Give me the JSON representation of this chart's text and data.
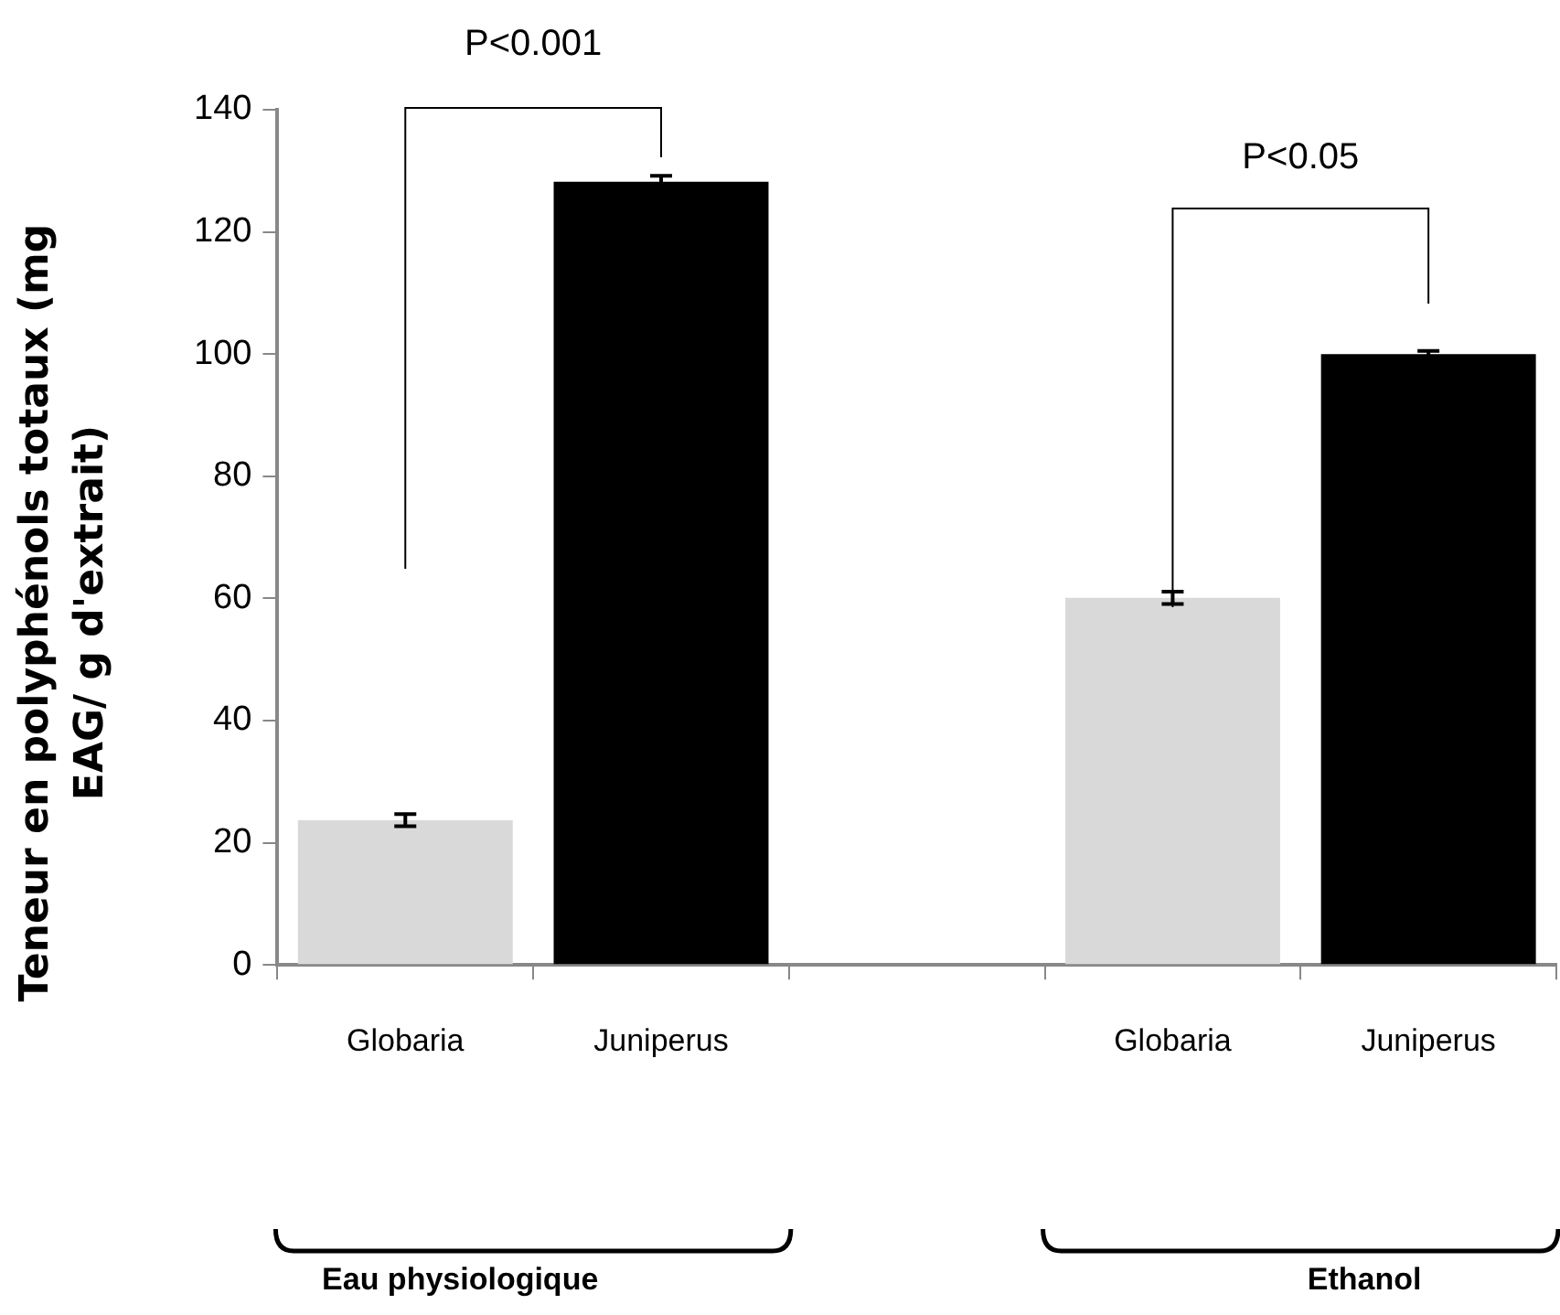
{
  "chart_data": {
    "type": "bar",
    "ylabel": "Teneur en polyphénols totaux (mg EAG/ g d'extrait)",
    "categories": [
      "Globaria",
      "Juniperus",
      null,
      "Globaria",
      "Juniperus"
    ],
    "values": [
      23.7,
      128.2,
      null,
      60.1,
      100
    ],
    "colors": [
      "#d9d9d9",
      "#000000",
      null,
      "#d9d9d9",
      "#000000"
    ],
    "errors": [
      1,
      1,
      null,
      1,
      0.5
    ],
    "ylim": [
      0,
      140
    ],
    "yticks": [
      0,
      20,
      40,
      60,
      80,
      100,
      120,
      140
    ],
    "grid": false,
    "legend": false,
    "annotations": [
      "P<0.001",
      "P<0.05",
      "Eau physiologique",
      "Ethanol"
    ]
  }
}
